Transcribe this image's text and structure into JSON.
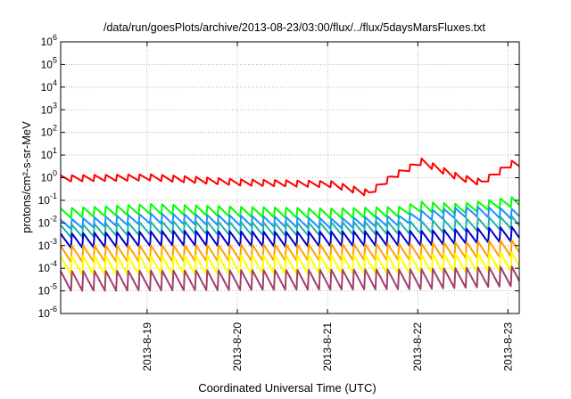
{
  "chart_data": {
    "type": "line",
    "title": "/data/run/goesPlots/archive/2013-08-23/03:00/flux/../flux/5daysMarsFluxes.txt",
    "xlabel": "Coordinated Universal Time (UTC)",
    "ylabel": "protons/cm²-s-sr-MeV",
    "y_scale": "log",
    "ylim": [
      1e-06,
      1000000.0
    ],
    "y_ticks": [
      {
        "base": "10",
        "exp": "-6",
        "value": 1e-06
      },
      {
        "base": "10",
        "exp": "-5",
        "value": 1e-05
      },
      {
        "base": "10",
        "exp": "-4",
        "value": 0.0001
      },
      {
        "base": "10",
        "exp": "-3",
        "value": 0.001
      },
      {
        "base": "10",
        "exp": "-2",
        "value": 0.01
      },
      {
        "base": "10",
        "exp": "-1",
        "value": 0.1
      },
      {
        "base": "10",
        "exp": "0",
        "value": 1
      },
      {
        "base": "10",
        "exp": "1",
        "value": 10
      },
      {
        "base": "10",
        "exp": "2",
        "value": 100
      },
      {
        "base": "10",
        "exp": "3",
        "value": 1000
      },
      {
        "base": "10",
        "exp": "4",
        "value": 10000
      },
      {
        "base": "10",
        "exp": "5",
        "value": 100000
      },
      {
        "base": "10",
        "exp": "6",
        "value": 1000000
      }
    ],
    "xlim": [
      "2013-08-18 01:00",
      "2013-08-23 03:00"
    ],
    "x_ticks": [
      {
        "label": "2013-8-19",
        "date": "2013-08-19 00:00"
      },
      {
        "label": "2013-8-20",
        "date": "2013-08-20 00:00"
      },
      {
        "label": "2013-8-21",
        "date": "2013-08-21 00:00"
      },
      {
        "label": "2013-8-22",
        "date": "2013-08-22 00:00"
      },
      {
        "label": "2013-8-23",
        "date": "2013-08-23 00:00"
      }
    ],
    "grid": true,
    "legend": "none",
    "sawtooth_period_hours": 3,
    "series": [
      {
        "color": "#ff0000",
        "width": 2,
        "base": [
          [
            0,
            0.9
          ],
          [
            24,
            1.0
          ],
          [
            48,
            0.6
          ],
          [
            72,
            0.5
          ],
          [
            82,
            0.2
          ],
          [
            88,
            1.0
          ],
          [
            96,
            5.0
          ],
          [
            106,
            1.0
          ],
          [
            112,
            0.6
          ],
          [
            120,
            4.0
          ],
          [
            134,
            1.8
          ],
          [
            144,
            0.9
          ],
          [
            168,
            0.5
          ],
          [
            170,
            0.5
          ]
        ],
        "amp": 2.0
      },
      {
        "color": "#00ff00",
        "width": 2,
        "base": [
          [
            0,
            0.025
          ],
          [
            24,
            0.04
          ],
          [
            48,
            0.03
          ],
          [
            72,
            0.025
          ],
          [
            90,
            0.03
          ],
          [
            96,
            0.05
          ],
          [
            106,
            0.04
          ],
          [
            120,
            0.08
          ],
          [
            134,
            0.05
          ],
          [
            144,
            0.03
          ],
          [
            170,
            0.025
          ]
        ],
        "amp": 3.0
      },
      {
        "color": "#1e90ff",
        "width": 2,
        "base": [
          [
            0,
            0.008
          ],
          [
            24,
            0.015
          ],
          [
            48,
            0.012
          ],
          [
            72,
            0.009
          ],
          [
            90,
            0.012
          ],
          [
            96,
            0.02
          ],
          [
            110,
            0.03
          ],
          [
            130,
            0.02
          ],
          [
            150,
            0.01
          ],
          [
            170,
            0.008
          ]
        ],
        "amp": 3.0
      },
      {
        "color": "#20b2aa",
        "width": 2,
        "base": [
          [
            0,
            0.004
          ],
          [
            30,
            0.006
          ],
          [
            60,
            0.005
          ],
          [
            96,
            0.006
          ],
          [
            120,
            0.01
          ],
          [
            144,
            0.006
          ],
          [
            170,
            0.004
          ]
        ],
        "amp": 4.0
      },
      {
        "color": "#0000cd",
        "width": 2,
        "base": [
          [
            0,
            0.0015
          ],
          [
            30,
            0.002
          ],
          [
            60,
            0.0018
          ],
          [
            96,
            0.002
          ],
          [
            120,
            0.003
          ],
          [
            170,
            0.0015
          ]
        ],
        "amp": 5.0
      },
      {
        "color": "#ff9f00",
        "width": 2,
        "base": [
          [
            0,
            0.0004
          ],
          [
            96,
            0.0005
          ],
          [
            120,
            0.0007
          ],
          [
            170,
            0.0004
          ]
        ],
        "amp": 6.0
      },
      {
        "color": "#ffff00",
        "width": 2,
        "base": [
          [
            0,
            0.00012
          ],
          [
            96,
            0.00014
          ],
          [
            120,
            0.00018
          ],
          [
            170,
            0.00012
          ]
        ],
        "amp": 8.0
      },
      {
        "color": "#a0406a",
        "width": 2,
        "base": [
          [
            0,
            2.5e-05
          ],
          [
            96,
            3e-05
          ],
          [
            120,
            4e-05
          ],
          [
            170,
            2.5e-05
          ]
        ],
        "amp": 9.0
      }
    ]
  }
}
